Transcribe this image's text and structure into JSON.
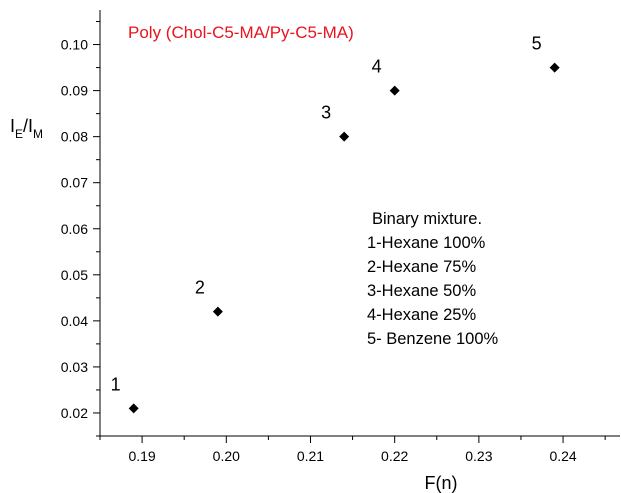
{
  "chart_data": {
    "type": "scatter",
    "title": "Poly (Chol-C5-MA/Py-C5-MA)",
    "title_color": "#e8141e",
    "xlabel": "F(n)",
    "ylabel": {
      "main": "I",
      "sub1": "E",
      "sep": "/I",
      "sub2": "M"
    },
    "xlim": [
      0.185,
      0.247
    ],
    "ylim": [
      0.015,
      0.1075
    ],
    "xticks": [
      "0.19",
      "0.20",
      "0.21",
      "0.22",
      "0.23",
      "0.24"
    ],
    "yticks": [
      "0.02",
      "0.03",
      "0.04",
      "0.05",
      "0.06",
      "0.07",
      "0.08",
      "0.09",
      "0.10"
    ],
    "grid": false,
    "marker": "diamond",
    "marker_color": "#000000",
    "points": [
      {
        "label": "1",
        "x": 0.189,
        "y": 0.021
      },
      {
        "label": "2",
        "x": 0.199,
        "y": 0.042
      },
      {
        "label": "3",
        "x": 0.214,
        "y": 0.08
      },
      {
        "label": "4",
        "x": 0.22,
        "y": 0.09
      },
      {
        "label": "5",
        "x": 0.239,
        "y": 0.095
      }
    ],
    "legend": {
      "heading": "Binary mixture.",
      "items": [
        "1-Hexane 100%",
        "2-Hexane 75%",
        "3-Hexane 50%",
        "4-Hexane 25%",
        "5- Benzene 100%"
      ]
    }
  }
}
